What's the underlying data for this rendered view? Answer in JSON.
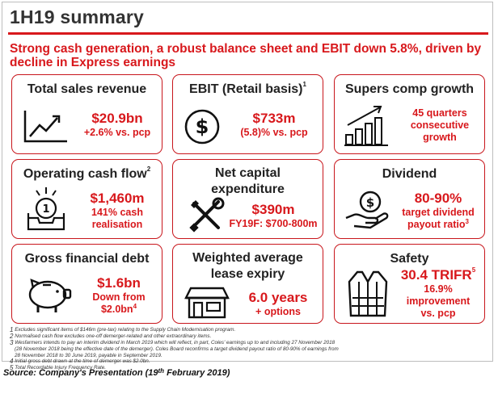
{
  "title": "1H19 summary",
  "subtitle": "Strong cash generation, a robust balance sheet and EBIT down 5.8%, driven by decline in Express earnings",
  "cards": {
    "sales": {
      "title": "Total sales revenue",
      "value": "$20.9bn",
      "detail": "+2.6% vs. pcp",
      "icon": "trend-up-icon"
    },
    "ebit": {
      "title": "EBIT (Retail basis)",
      "title_sup": "1",
      "value": "$733m",
      "detail": "(5.8)% vs. pcp",
      "icon": "dollar-coin-icon"
    },
    "supers": {
      "title": "Supers comp growth",
      "value": "45 quarters",
      "detail1": "consecutive",
      "detail2": "growth",
      "icon": "bar-growth-icon"
    },
    "opcash": {
      "title": "Operating cash flow",
      "title_sup": "2",
      "value": "$1,460m",
      "detail1": "141% cash",
      "detail2": "realisation",
      "icon": "cash-tray-icon"
    },
    "capex": {
      "title1": "Net capital",
      "title2": "expenditure",
      "value": "$390m",
      "detail": "FY19F: $700-800m",
      "icon": "tools-icon"
    },
    "dividend": {
      "title": "Dividend",
      "value": "80-90%",
      "detail1": "target dividend",
      "detail2": "payout ratio",
      "detail2_sup": "3",
      "icon": "coin-hand-icon"
    },
    "debt": {
      "title": "Gross financial debt",
      "value": "$1.6bn",
      "detail1": "Down from",
      "detail2": "$2.0bn",
      "detail2_sup": "4",
      "icon": "piggy-bank-icon"
    },
    "lease": {
      "title1": "Weighted average",
      "title2": "lease expiry",
      "value": "6.0 years",
      "detail": "+ options",
      "icon": "store-icon"
    },
    "safety": {
      "title": "Safety",
      "value": "30.4 TRIFR",
      "value_sup": "5",
      "detail1": "16.9%",
      "detail2": "improvement",
      "detail3": "vs. pcp",
      "icon": "safety-vest-icon"
    }
  },
  "footnotes": [
    {
      "num": "1",
      "text": "Excludes significant items of $146m (pre-tax) relating to the Supply Chain Modernisation program."
    },
    {
      "num": "2",
      "text": "Normalised cash flow excludes one-off demerger-related and other extraordinary items."
    },
    {
      "num": "3",
      "text": "Wesfarmers intends to pay an interim dividend in March 2019 which will reflect, in part, Coles' earnings up to and including 27 November 2018"
    },
    {
      "num": "",
      "text": "(28 November 2018 being the effective date of the demerger). Coles Board reconfirms a target dividend payout ratio of 80-90% of earnings from"
    },
    {
      "num": "",
      "text": "28 November 2018 to 30 June 2019, payable in September 2019."
    },
    {
      "num": "4",
      "text": "Initial gross debt drawn at the time of demerger was $2.0bn."
    },
    {
      "num": "5",
      "text": "Total Recordable Injury Frequency Rate."
    }
  ],
  "source": {
    "prefix": "Source: Company's Presentation (19",
    "sup": "th",
    "suffix": " February 2019)"
  },
  "colors": {
    "accent": "#d8181c",
    "text": "#222222",
    "border": "#bdbdbd"
  }
}
